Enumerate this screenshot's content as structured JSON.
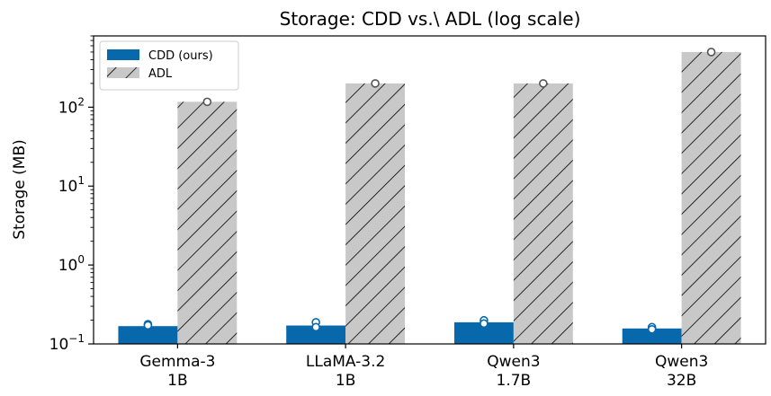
{
  "chart_data": {
    "type": "bar",
    "title": "Storage: CDD vs.\\ ADL (log scale)",
    "ylabel": "Storage (MB)",
    "xlabel": "",
    "yscale": "log",
    "ylim": [
      0.1,
      800
    ],
    "yticks": [
      {
        "value": 0.1,
        "base": "10",
        "exp": "−1"
      },
      {
        "value": 1,
        "base": "10",
        "exp": "0"
      },
      {
        "value": 10,
        "base": "10",
        "exp": "1"
      },
      {
        "value": 100,
        "base": "10",
        "exp": "2"
      }
    ],
    "categories": [
      {
        "line1": "Gemma-3",
        "line2": "1B"
      },
      {
        "line1": "LLaMA-3.2",
        "line2": "1B"
      },
      {
        "line1": "Qwen3",
        "line2": "1.7B"
      },
      {
        "line1": "Qwen3",
        "line2": "32B"
      }
    ],
    "series": [
      {
        "name": "CDD (ours)",
        "color": "#0868ac",
        "hatch": false,
        "values": [
          0.168,
          0.171,
          0.188,
          0.157
        ],
        "points": [
          [
            0.178,
            0.172
          ],
          [
            0.188,
            0.163
          ],
          [
            0.199,
            0.181
          ],
          [
            0.163,
            0.153
          ]
        ]
      },
      {
        "name": "ADL",
        "color": "#c8c8c8",
        "hatch": true,
        "values": [
          117,
          200,
          200,
          500
        ],
        "points": [
          [
            117
          ],
          [
            200
          ],
          [
            200
          ],
          [
            500
          ]
        ]
      }
    ],
    "legend": "upper-left",
    "grid": false
  }
}
